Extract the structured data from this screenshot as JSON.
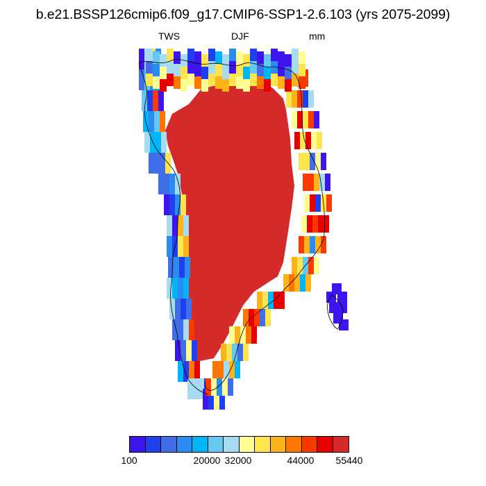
{
  "title": "b.e21.BSSP126cmip6.f09_g17.CMIP6-SSP1-2.6.103 (yrs 2075-2099)",
  "subtitle_left": "TWS",
  "subtitle_center": "DJF",
  "subtitle_right": "mm",
  "colorbar": {
    "colors": [
      "#3f15ee",
      "#2040f0",
      "#3f6ee6",
      "#2a8cf0",
      "#00b4f8",
      "#66c8f2",
      "#a6dbf2",
      "#fefe94",
      "#fee54f",
      "#fcb31c",
      "#fc7600",
      "#fc3a00",
      "#e80000",
      "#d52a2a"
    ],
    "labels": [
      "100",
      "20000",
      "32000",
      "44000",
      "55440"
    ]
  }
}
